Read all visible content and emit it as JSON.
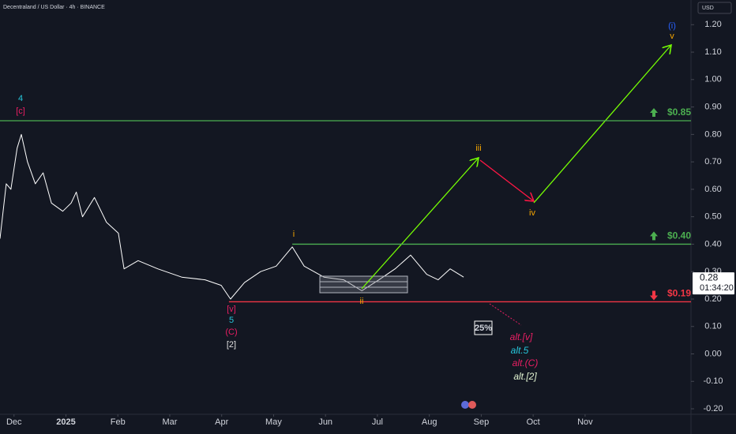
{
  "chart_data": {
    "type": "line",
    "title": "Decentraland / US Dollar · 4h · BINANCE",
    "currency": "USD",
    "xlim": [
      -0.27,
      13.04
    ],
    "xticks": [
      {
        "value": 0,
        "label": "Dec"
      },
      {
        "value": 1,
        "label": "2025"
      },
      {
        "value": 2,
        "label": "Feb"
      },
      {
        "value": 3,
        "label": "Mar"
      },
      {
        "value": 4,
        "label": "Apr"
      },
      {
        "value": 5,
        "label": "May"
      },
      {
        "value": 6,
        "label": "Jun"
      },
      {
        "value": 7,
        "label": "Jul"
      },
      {
        "value": 8,
        "label": "Aug"
      },
      {
        "value": 9,
        "label": "Sep"
      },
      {
        "value": 10,
        "label": "Oct"
      },
      {
        "value": 11,
        "label": "Nov"
      }
    ],
    "ylim": [
      -0.22,
      1.29
    ],
    "yticks": [
      {
        "value": -0.2,
        "label": "-0.20"
      },
      {
        "value": -0.1,
        "label": "-0.10"
      },
      {
        "value": 0,
        "label": "0.00"
      },
      {
        "value": 0.1,
        "label": "0.10"
      },
      {
        "value": 0.2,
        "label": "0.20"
      },
      {
        "value": 0.3,
        "label": "0.30"
      },
      {
        "value": 0.4,
        "label": "0.40"
      },
      {
        "value": 0.5,
        "label": "0.50"
      },
      {
        "value": 0.6,
        "label": "0.60"
      },
      {
        "value": 0.7,
        "label": "0.70"
      },
      {
        "value": 0.8,
        "label": "0.80"
      },
      {
        "value": 0.9,
        "label": "0.90"
      },
      {
        "value": 1.0,
        "label": "1.00"
      },
      {
        "value": 1.1,
        "label": "1.10"
      },
      {
        "value": 1.2,
        "label": "1.20"
      }
    ],
    "series": [
      {
        "color": "#ffffff",
        "x": [
          -0.27,
          -0.15,
          -0.06,
          0.06,
          0.14,
          0.26,
          0.41,
          0.56,
          0.72,
          0.94,
          1.1,
          1.2,
          1.32,
          1.55,
          1.78,
          2.01,
          2.12,
          2.39,
          2.77,
          3.23,
          3.68,
          3.99,
          4.17,
          4.44,
          4.75,
          5.05,
          5.36,
          5.59,
          5.97,
          6.35,
          6.7,
          7.03,
          7.34,
          7.64,
          7.95,
          8.17,
          8.4,
          8.66
        ],
        "values": [
          0.42,
          0.62,
          0.6,
          0.75,
          0.8,
          0.7,
          0.62,
          0.66,
          0.55,
          0.52,
          0.55,
          0.59,
          0.5,
          0.57,
          0.48,
          0.44,
          0.31,
          0.34,
          0.31,
          0.28,
          0.27,
          0.25,
          0.2,
          0.26,
          0.3,
          0.32,
          0.39,
          0.32,
          0.28,
          0.27,
          0.23,
          0.27,
          0.31,
          0.36,
          0.29,
          0.27,
          0.31,
          0.28
        ]
      }
    ],
    "last_price_label": "0.28",
    "countdown": "01:34:20",
    "levels": [
      {
        "value": 0.85,
        "label": "$0.85",
        "color": "#4caf50"
      },
      {
        "value": 0.4,
        "label": "$0.40",
        "color": "#4caf50",
        "from": 5.36
      },
      {
        "value": 0.19,
        "label": "$0.19",
        "color": "#f23645",
        "from": 4.14
      }
    ],
    "probability": "25%",
    "annotations": [
      {
        "text": "(i)",
        "color": "#2962ff"
      },
      {
        "text": "v",
        "color": "#f7a600"
      },
      {
        "text": "4",
        "color": "#26c6da"
      },
      {
        "text": "[c]",
        "color": "#e91e63"
      },
      {
        "text": "iii",
        "color": "#f7a600"
      },
      {
        "text": "iv",
        "color": "#f7a600"
      },
      {
        "text": "i",
        "color": "#f7a600"
      },
      {
        "text": "ii",
        "color": "#f7a600"
      },
      {
        "text": "[v]",
        "color": "#e91e63"
      },
      {
        "text": "5",
        "color": "#26c6da"
      },
      {
        "text": "(C)",
        "color": "#e91e63"
      },
      {
        "text": "[2]",
        "color": "#e0e0e0"
      },
      {
        "text": "alt.[v]",
        "color": "#e91e63"
      },
      {
        "text": "alt.5",
        "color": "#26c6da"
      },
      {
        "text": "alt.(C)",
        "color": "#e91e63"
      },
      {
        "text": "alt.[2]",
        "color": "#e0f2d0"
      }
    ]
  }
}
